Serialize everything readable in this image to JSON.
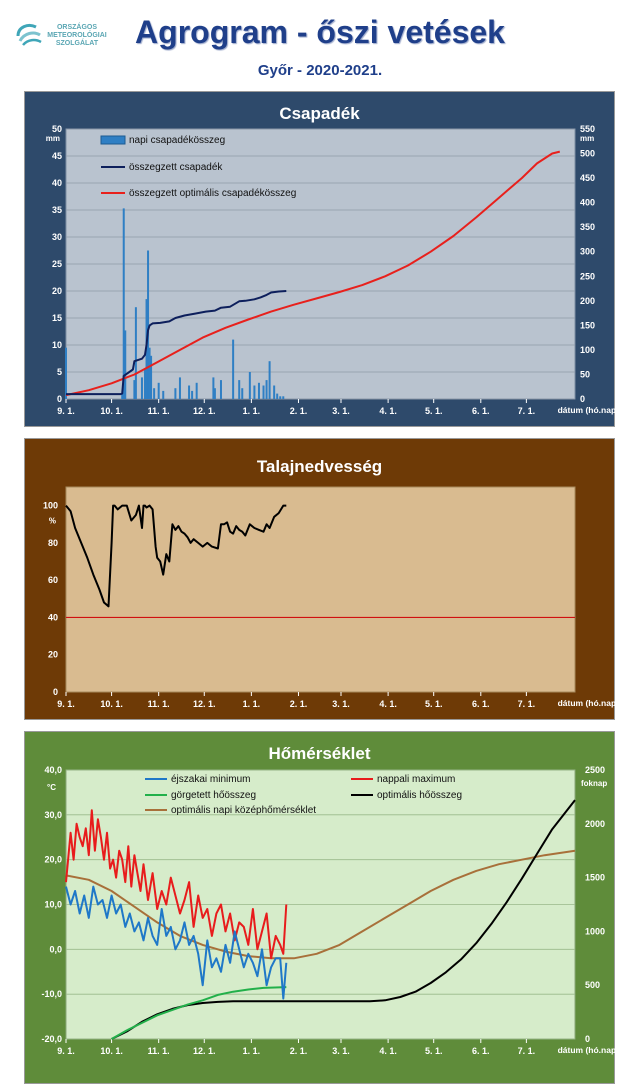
{
  "header": {
    "title": "Agrogram - őszi vetések",
    "subtitle": "Győr - 2020-2021.",
    "logo_lines": [
      "ORSZÁGOS",
      "METEOROLÓGIAI",
      "SZOLGÁLAT"
    ]
  },
  "x_ticks": [
    "9. 1.",
    "10. 1.",
    "11. 1.",
    "12. 1.",
    "1. 1.",
    "2. 1.",
    "3. 1.",
    "4. 1.",
    "5. 1.",
    "6. 1.",
    "7. 1."
  ],
  "x_unit": "dátum (hó.nap)",
  "colors": {
    "precip_bg": "#2e4a6b",
    "precip_plot": "#b9c3cf",
    "moisture_bg": "#6e3a06",
    "moisture_plot": "#d9bb90",
    "temp_bg": "#5f8c3a",
    "temp_plot": "#d6ecca"
  },
  "chart_data": [
    {
      "type": "bar",
      "title": "Csapadék",
      "ylabel_left": "mm",
      "ylabel_right": "mm",
      "ylim_left": [
        0,
        50
      ],
      "ylim_right": [
        0,
        550
      ],
      "yticks_left": [
        "0",
        "5",
        "10",
        "15",
        "20",
        "25",
        "30",
        "35",
        "40",
        "45",
        "50"
      ],
      "yticks_right": [
        "0",
        "50",
        "100",
        "150",
        "200",
        "250",
        "300",
        "350",
        "400",
        "450",
        "500",
        "550"
      ],
      "grid": true,
      "legend": [
        "napi csapadékösszeg",
        "összegzett csapadék",
        "összegzett optimális csapadékösszeg"
      ],
      "series": [
        {
          "name": "napi csapadékösszeg",
          "axis": "left",
          "x": [
            0,
            37,
            38,
            39,
            45,
            46,
            50,
            52,
            53,
            54,
            55,
            56,
            58,
            61,
            64,
            72,
            75,
            81,
            83,
            86,
            97,
            98,
            102,
            110,
            114,
            116,
            121,
            124,
            127,
            130,
            132,
            134,
            137,
            139,
            141,
            143
          ],
          "y": [
            9.5,
            1,
            35.3,
            12.7,
            3.5,
            17,
            4,
            5.5,
            18.5,
            27.5,
            9.5,
            8,
            2,
            3,
            1.5,
            2,
            4,
            2.5,
            1.5,
            3,
            4,
            2,
            3.5,
            11,
            3.5,
            2,
            5,
            2.5,
            3,
            2.5,
            3.5,
            7,
            2.5,
            1,
            0.5,
            0.5
          ]
        },
        {
          "name": "összegzett csapadék",
          "axis": "right",
          "x": [
            0,
            36,
            37,
            38,
            44,
            45,
            50,
            52,
            53,
            54,
            55,
            57,
            62,
            68,
            72,
            78,
            85,
            92,
            98,
            102,
            108,
            114,
            118,
            124,
            128,
            132,
            135,
            140,
            145
          ],
          "y": [
            10,
            10,
            11,
            47,
            60,
            77,
            82,
            90,
            110,
            140,
            150,
            154,
            155,
            158,
            165,
            170,
            174,
            178,
            180,
            186,
            188,
            199,
            200,
            203,
            207,
            212,
            217,
            219,
            220
          ]
        },
        {
          "name": "összegzett optimális csapadékösszeg",
          "axis": "right",
          "x": [
            0,
            15,
            30,
            45,
            60,
            75,
            90,
            105,
            120,
            135,
            150,
            165,
            180,
            195,
            210,
            225,
            240,
            255,
            270,
            285,
            300,
            310,
            320,
            325
          ],
          "y": [
            8,
            18,
            32,
            50,
            75,
            100,
            125,
            145,
            162,
            178,
            192,
            205,
            218,
            232,
            250,
            272,
            300,
            332,
            370,
            410,
            450,
            480,
            500,
            504
          ]
        }
      ]
    },
    {
      "type": "line",
      "title": "Talajnedvesség",
      "ylabel": "%",
      "ylim": [
        0,
        110
      ],
      "yticks": [
        "0",
        "20",
        "40",
        "60",
        "80",
        "100"
      ],
      "threshold": 40,
      "series": [
        {
          "name": "talajnedvesség",
          "x": [
            0,
            3,
            6,
            10,
            14,
            18,
            22,
            25,
            28,
            30,
            31,
            32,
            34,
            37,
            40,
            43,
            46,
            48,
            50,
            51,
            52,
            53,
            55,
            57,
            58,
            59,
            60,
            62,
            64,
            66,
            68,
            70,
            72,
            74,
            76,
            78,
            80,
            82,
            84,
            87,
            90,
            93,
            96,
            100,
            102,
            104,
            106,
            108,
            110,
            112,
            114,
            116,
            118,
            121,
            124,
            127,
            130,
            132,
            134,
            137,
            140,
            143,
            145
          ],
          "y": [
            100,
            97,
            88,
            80,
            72,
            63,
            55,
            48,
            46,
            80,
            100,
            100,
            98,
            100,
            100,
            92,
            95,
            100,
            88,
            100,
            100,
            99,
            100,
            98,
            88,
            78,
            72,
            70,
            63,
            74,
            70,
            90,
            87,
            89,
            86,
            85,
            83,
            80,
            82,
            80,
            78,
            80,
            78,
            77,
            90,
            90,
            91,
            86,
            85,
            89,
            87,
            86,
            84,
            90,
            88,
            87,
            86,
            90,
            88,
            94,
            96,
            100,
            100
          ]
        }
      ]
    },
    {
      "type": "line",
      "title": "Hőmérséklet",
      "ylabel_left": "°C",
      "ylabel_right": "foknap",
      "ylim_left": [
        -20,
        40
      ],
      "ylim_right": [
        0,
        2500
      ],
      "yticks_left": [
        "-20,0",
        "-10,0",
        "0,0",
        "10,0",
        "20,0",
        "30,0",
        "40,0"
      ],
      "yticks_right": [
        "0",
        "500",
        "1000",
        "1500",
        "2000",
        "2500"
      ],
      "grid": true,
      "legend": [
        "éjszakai minimum",
        "nappali maximum",
        "görgetett hőösszeg",
        "optimális hőösszeg",
        "optimális napi középhőmérséklet"
      ],
      "series": [
        {
          "name": "éjszakai minimum",
          "axis": "left",
          "x": [
            0,
            3,
            6,
            9,
            12,
            15,
            18,
            21,
            24,
            27,
            30,
            33,
            36,
            39,
            42,
            45,
            48,
            51,
            54,
            57,
            60,
            63,
            66,
            69,
            72,
            75,
            78,
            81,
            84,
            87,
            90,
            93,
            96,
            99,
            102,
            105,
            108,
            111,
            114,
            117,
            120,
            123,
            126,
            129,
            132,
            135,
            138,
            141,
            143,
            145
          ],
          "y": [
            14,
            10,
            13,
            8,
            12,
            7,
            14,
            10,
            11,
            7,
            12,
            8,
            10,
            5,
            8,
            4,
            6,
            2,
            7,
            3,
            1,
            9,
            3,
            5,
            0,
            2,
            6,
            1,
            3,
            -1,
            -8,
            2,
            -4,
            -2,
            -5,
            1,
            -3,
            4,
            0,
            -4,
            -1,
            -3,
            -6,
            0,
            -8,
            -4,
            -2,
            -2,
            -11,
            -3
          ]
        },
        {
          "name": "nappali maximum",
          "axis": "left",
          "x": [
            0,
            3,
            5,
            7,
            9,
            11,
            13,
            15,
            17,
            19,
            21,
            23,
            25,
            27,
            29,
            31,
            33,
            35,
            37,
            39,
            41,
            43,
            45,
            47,
            49,
            51,
            54,
            57,
            60,
            63,
            66,
            69,
            72,
            75,
            78,
            81,
            84,
            87,
            90,
            93,
            96,
            99,
            102,
            105,
            108,
            111,
            114,
            117,
            120,
            123,
            126,
            129,
            132,
            135,
            138,
            141,
            143,
            145
          ],
          "y": [
            15,
            26,
            20,
            28,
            25,
            23,
            27,
            21,
            31,
            22,
            29,
            25,
            20,
            26,
            18,
            20,
            16,
            22,
            20,
            15,
            23,
            14,
            21,
            17,
            13,
            19,
            11,
            17,
            9,
            13,
            10,
            16,
            12,
            8,
            11,
            15,
            5,
            12,
            7,
            9,
            3,
            8,
            10,
            4,
            8,
            2,
            6,
            5,
            1,
            9,
            0,
            4,
            8,
            -2,
            3,
            1,
            -1,
            10
          ]
        },
        {
          "name": "görgetett hőösszeg",
          "axis": "right",
          "x": [
            30,
            40,
            50,
            60,
            70,
            80,
            90,
            100,
            110,
            120,
            130,
            140,
            145
          ],
          "y": [
            0,
            80,
            150,
            220,
            270,
            320,
            360,
            410,
            440,
            460,
            475,
            480,
            482
          ]
        },
        {
          "name": "optimális hőösszeg",
          "axis": "right",
          "x": [
            30,
            40,
            50,
            60,
            70,
            80,
            90,
            100,
            110,
            120,
            130,
            140,
            150,
            160,
            170,
            180,
            190,
            200,
            210,
            220,
            230,
            240,
            250,
            260,
            270,
            280,
            290,
            300,
            310,
            320,
            335
          ],
          "y": [
            0,
            70,
            160,
            230,
            280,
            315,
            335,
            345,
            350,
            350,
            350,
            350,
            350,
            350,
            350,
            350,
            350,
            350,
            360,
            390,
            440,
            520,
            620,
            740,
            890,
            1070,
            1270,
            1490,
            1720,
            1950,
            2220
          ]
        },
        {
          "name": "optimális napi középhőmérséklet",
          "axis": "left",
          "x": [
            0,
            15,
            30,
            45,
            60,
            75,
            90,
            105,
            120,
            135,
            150,
            165,
            180,
            195,
            210,
            225,
            240,
            255,
            270,
            285,
            300,
            315,
            335
          ],
          "y": [
            16.5,
            15.5,
            13,
            9.5,
            6,
            3,
            1,
            -0.5,
            -1.5,
            -2,
            -2,
            -1,
            1,
            4,
            7,
            10,
            13,
            15.5,
            17.5,
            19,
            20,
            21,
            22
          ]
        }
      ]
    }
  ]
}
